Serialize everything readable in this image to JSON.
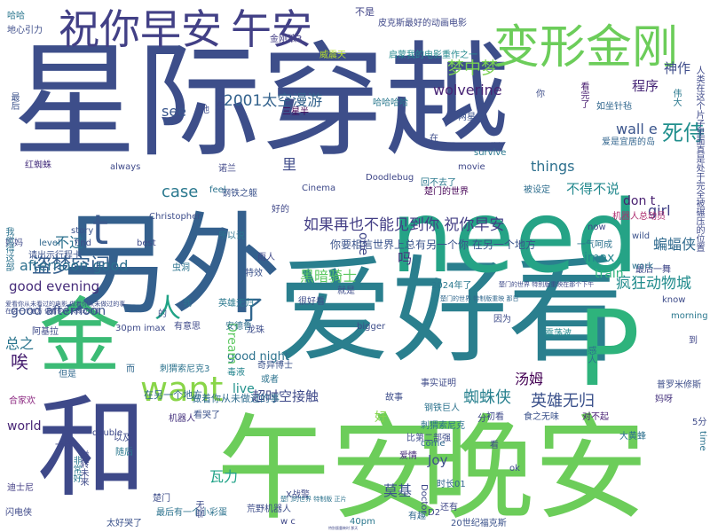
{
  "words": [
    {
      "text": "星际穿越",
      "color": "#3d4e8a"
    },
    {
      "text": "爱好看",
      "color": "#2a7f8e"
    },
    {
      "text": "午安",
      "color": "#6ccd5a"
    },
    {
      "text": "晚安",
      "color": "#6ccd5a"
    },
    {
      "text": "另外",
      "color": "#34608d"
    },
    {
      "text": "need",
      "color": "#25a386"
    },
    {
      "text": "和",
      "color": "#3e4989"
    },
    {
      "text": "P",
      "color": "#2eb37c"
    },
    {
      "text": "金",
      "color": "#3bbb75"
    },
    {
      "text": "祝你早安",
      "color": "#424086"
    },
    {
      "text": "午安",
      "color": "#424086"
    },
    {
      "text": "变形金刚",
      "color": "#6ccd5a"
    },
    {
      "text": "want",
      "color": "#89d548"
    },
    {
      "text": "t",
      "color": "#38598c"
    },
    {
      "text": "如果再也不能见到你 祝你早安",
      "color": "#433e85"
    },
    {
      "text": "你要相信世界上总有另一个你 在另一个地方",
      "color": "#3a538b"
    },
    {
      "text": "2001太空漫游",
      "color": "#33628d"
    },
    {
      "text": "wolverine",
      "color": "#482475"
    },
    {
      "text": "梦中梦",
      "color": "#7ad151"
    },
    {
      "text": "死侍",
      "color": "#218f8d"
    },
    {
      "text": "神作",
      "color": "#3e4c8a"
    },
    {
      "text": "程序",
      "color": "#482777"
    },
    {
      "text": "wall e",
      "color": "#3a548c"
    },
    {
      "text": "盗梦空间",
      "color": "#345f8d"
    },
    {
      "text": "不过",
      "color": "#2c718e"
    },
    {
      "text": "afternoon good",
      "color": "#2d708e"
    },
    {
      "text": "good evening",
      "color": "#472d7b"
    },
    {
      "text": "good afternoon",
      "color": "#3b528b"
    },
    {
      "text": "疯狂动物城",
      "color": "#228c8d"
    },
    {
      "text": "蝙蝠侠",
      "color": "#306a8e"
    },
    {
      "text": "黑暗骑士",
      "color": "#5ec962"
    },
    {
      "text": "case",
      "color": "#2a788e"
    },
    {
      "text": "things",
      "color": "#2d708e"
    },
    {
      "text": "不得不说",
      "color": "#23898e"
    },
    {
      "text": "see",
      "color": "#39568c"
    },
    {
      "text": "里",
      "color": "#3e4a89"
    },
    {
      "text": "girl",
      "color": "#424186"
    },
    {
      "text": "don t",
      "color": "#481f70"
    },
    {
      "text": "good night",
      "color": "#2c728e"
    },
    {
      "text": "好",
      "color": "#84d44b"
    },
    {
      "text": "人",
      "color": "#20a386"
    },
    {
      "text": "了",
      "color": "#31668e"
    },
    {
      "text": "蜘蛛侠",
      "color": "#27808e"
    },
    {
      "text": "英雄无归",
      "color": "#3b518b"
    },
    {
      "text": "汤姆",
      "color": "#440154"
    },
    {
      "text": "超时空接触",
      "color": "#3e4989"
    },
    {
      "text": "莫基",
      "color": "#3b528b"
    },
    {
      "text": "Joy",
      "color": "#3d4e8a"
    },
    {
      "text": "瓦力",
      "color": "#1fa287"
    },
    {
      "text": "world",
      "color": "#482576"
    },
    {
      "text": "train",
      "color": "#2eb37c"
    },
    {
      "text": "imax",
      "color": "#24878e"
    },
    {
      "text": "live",
      "color": "#21918c"
    },
    {
      "text": "总之",
      "color": "#2b758e"
    },
    {
      "text": "唉",
      "color": "#482071"
    },
    {
      "text": "吗",
      "color": "#46327e"
    },
    {
      "text": "one",
      "color": "#3f4788"
    },
    {
      "text": "Dream",
      "color": "#5ec962"
    },
    {
      "text": "30pm imax",
      "color": "#3e4a89"
    },
    {
      "text": "刺猬索尼克3",
      "color": "#2c738e"
    },
    {
      "text": "英雄无归",
      "color": "#2a788e"
    },
    {
      "text": "安德鲁",
      "color": "#2e6e8e"
    },
    {
      "text": "奇异博士",
      "color": "#3b528b"
    },
    {
      "text": "毒液",
      "color": "#25858e"
    },
    {
      "text": "在另一个地方",
      "color": "#31688e"
    },
    {
      "text": "做着你从未做过的事",
      "color": "#2f6c8e"
    },
    {
      "text": "金刚狼3",
      "color": "#433d84"
    },
    {
      "text": "皮克斯最好的动画电影",
      "color": "#3f4889"
    },
    {
      "text": "启蒙我的电影重作之一",
      "color": "#23898e"
    },
    {
      "text": "不是",
      "color": "#414487"
    },
    {
      "text": "地心引力",
      "color": "#3d4d8a"
    },
    {
      "text": "哈哈",
      "color": "#2a768e"
    },
    {
      "text": "威震天",
      "color": "#b5de2b"
    },
    {
      "text": "三星半",
      "color": "#440154"
    },
    {
      "text": "两星半",
      "color": "#3b528b"
    },
    {
      "text": "如坐针毡",
      "color": "#31678e"
    },
    {
      "text": "爱是宜居的岛",
      "color": "#32658e"
    },
    {
      "text": "红蜘蛛",
      "color": "#46307e"
    },
    {
      "text": "Doodlebug",
      "color": "#3f4788"
    },
    {
      "text": "Cinema",
      "color": "#3e4989"
    },
    {
      "text": "钢铁之躯",
      "color": "#3b528b"
    },
    {
      "text": "Christopher",
      "color": "#3d4d8a"
    },
    {
      "text": "看完了",
      "color": "#481d6f"
    },
    {
      "text": "机器人总动员",
      "color": "#ad2e70"
    },
    {
      "text": "被设定",
      "color": "#2e6e8e"
    },
    {
      "text": "回不去了",
      "color": "#2a788e"
    },
    {
      "text": "楚门的世界",
      "color": "#440154"
    },
    {
      "text": "一气呵成",
      "color": "#2c738e"
    },
    {
      "text": "最后一舞",
      "color": "#3f4788"
    },
    {
      "text": "morning",
      "color": "#2a788e"
    },
    {
      "text": "到",
      "color": "#404688"
    },
    {
      "text": "因为",
      "color": "#3e4c8a"
    },
    {
      "text": "感人",
      "color": "#2d708e"
    },
    {
      "text": "震荡波",
      "color": "#23888e"
    },
    {
      "text": "普罗米修斯",
      "color": "#3d4e8a"
    },
    {
      "text": "妈呀",
      "color": "#46337e"
    },
    {
      "text": "事实证明",
      "color": "#3e4a89"
    },
    {
      "text": "钢铁巨人",
      "color": "#2c728e"
    },
    {
      "text": "初看",
      "color": "#3e4989"
    },
    {
      "text": "食之无味",
      "color": "#3b528b"
    },
    {
      "text": "对不起",
      "color": "#482173"
    },
    {
      "text": "比第二部强",
      "color": "#3e4c8a"
    },
    {
      "text": "刺猬索尼克",
      "color": "#2c718e"
    },
    {
      "text": "大黄蜂",
      "color": "#2d708e"
    },
    {
      "text": "爱情",
      "color": "#472c7a"
    },
    {
      "text": "时长01",
      "color": "#32648e"
    },
    {
      "text": "Doctor",
      "color": "#3e4989"
    },
    {
      "text": "还有",
      "color": "#3f4788"
    },
    {
      "text": "有趣",
      "color": "#31688e"
    },
    {
      "text": "20世纪福克斯",
      "color": "#3b528b"
    },
    {
      "text": "D2",
      "color": "#3e4989"
    },
    {
      "text": "40pm",
      "color": "#2a788e"
    },
    {
      "text": "荒野机器人",
      "color": "#3d4d8a"
    },
    {
      "text": "X战警",
      "color": "#3e4989"
    },
    {
      "text": "最后有一个小彩蛋",
      "color": "#2c738e"
    },
    {
      "text": "太好哭了",
      "color": "#3b528b"
    },
    {
      "text": "闪电侠",
      "color": "#3e4989"
    },
    {
      "text": "迪士尼",
      "color": "#433e85"
    },
    {
      "text": "楚门",
      "color": "#3d4d8a"
    },
    {
      "text": "随后",
      "color": "#2a788e"
    },
    {
      "text": "以及",
      "color": "#3e4a89"
    },
    {
      "text": "一样",
      "color": "#3f4788"
    },
    {
      "text": "但是",
      "color": "#31688e"
    },
    {
      "text": "或者",
      "color": "#2c738e"
    },
    {
      "text": "故事",
      "color": "#3d4d8a"
    },
    {
      "text": "机器人",
      "color": "#46337e"
    },
    {
      "text": "合家欢",
      "color": "#8c2981"
    },
    {
      "text": "阿基拉",
      "color": "#3e4a89"
    },
    {
      "text": "有意思",
      "color": "#3e4989"
    },
    {
      "text": "特效",
      "color": "#3b528b"
    },
    {
      "text": "雨人",
      "color": "#3f4788"
    },
    {
      "text": "虫洞",
      "color": "#2c738e"
    },
    {
      "text": "妈妈",
      "color": "#3e4989"
    },
    {
      "text": "请出示行程卡",
      "color": "#3b528b"
    },
    {
      "text": "我觉得这部",
      "color": "#2c738e"
    },
    {
      "text": "很好看",
      "color": "#3d4d8a"
    },
    {
      "text": "就是",
      "color": "#3e4c8a"
    },
    {
      "text": "2024年了",
      "color": "#2a788e"
    },
    {
      "text": "诺兰",
      "color": "#3f4788"
    },
    {
      "text": "story",
      "color": "#3b528b"
    },
    {
      "text": "always",
      "color": "#3e4989"
    },
    {
      "text": "feel",
      "color": "#2c738e"
    },
    {
      "text": "level",
      "color": "#31688e"
    },
    {
      "text": "find",
      "color": "#3d4d8a"
    },
    {
      "text": "best",
      "color": "#3e4a89"
    },
    {
      "text": "movie",
      "color": "#3f4788"
    },
    {
      "text": "survive",
      "color": "#2a788e"
    },
    {
      "text": "now",
      "color": "#3e4989"
    },
    {
      "text": "wild",
      "color": "#3b528b"
    },
    {
      "text": "work",
      "color": "#2c738e"
    },
    {
      "text": "know",
      "color": "#3e4c8a"
    },
    {
      "text": "bigger",
      "color": "#3d4d8a"
    },
    {
      "text": "double",
      "color": "#3e4989"
    },
    {
      "text": "come",
      "color": "#31688e"
    },
    {
      "text": "time",
      "color": "#2c738e"
    },
    {
      "text": "5分",
      "color": "#3e4a89"
    },
    {
      "text": "分",
      "color": "#3f4788"
    },
    {
      "text": "看哭了",
      "color": "#3b528b"
    },
    {
      "text": "龙珠",
      "color": "#3d4d8a"
    },
    {
      "text": "非常好",
      "color": "#2a788e"
    },
    {
      "text": "逆转未来",
      "color": "#3e4989"
    },
    {
      "text": "无聊",
      "color": "#3e4c8a"
    },
    {
      "text": "好的",
      "color": "#3f4788"
    },
    {
      "text": "所以说",
      "color": "#2c738e"
    },
    {
      "text": "的",
      "color": "#3b528b"
    },
    {
      "text": "在",
      "color": "#3d4d8a"
    },
    {
      "text": "但",
      "color": "#3e4989"
    },
    {
      "text": "而",
      "color": "#31688e"
    },
    {
      "text": "看",
      "color": "#3e4a89"
    },
    {
      "text": "w c",
      "color": "#3f4788"
    },
    {
      "text": "伟大",
      "color": "#2a788e"
    },
    {
      "text": "人类在这个片子里面真是处于完全被碾压的位置",
      "color": "#3e4989"
    },
    {
      "text": "最后",
      "color": "#3b528b"
    },
    {
      "text": "楚门的世界 特制版 正片",
      "color": "#2c738e"
    },
    {
      "text": "爱看你从未看过的电影 做着你从未做过的事",
      "color": "#3d4d8a"
    },
    {
      "text": "在另一个地方 做着你从未做过的事",
      "color": "#3e4c8a"
    },
    {
      "text": "楚门的世界 特制版重映 那日",
      "color": "#31688e"
    },
    {
      "text": "楚门的世界 特别版重映在那个下午",
      "color": "#3e4a89"
    },
    {
      "text": "特别版重映时 那天",
      "color": "#3f4788"
    },
    {
      "text": "哈哈哈哈",
      "color": "#2a788e"
    },
    {
      "text": "ok",
      "color": "#3e4989"
    },
    {
      "text": "go",
      "color": "#3b528b"
    },
    {
      "text": "我",
      "color": "#2c738e"
    },
    {
      "text": "你",
      "color": "#3d4d8a"
    },
    {
      "text": "他",
      "color": "#3e4c8a"
    }
  ]
}
